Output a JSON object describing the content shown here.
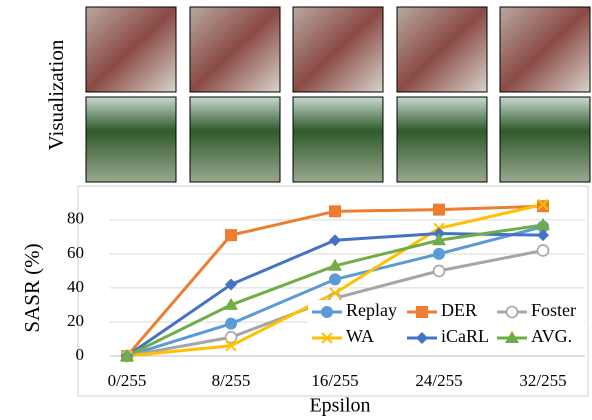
{
  "chart_data": {
    "type": "line",
    "side_label": "Visualization",
    "xlabel": "Epsilon",
    "ylabel": "SASR (%)",
    "categories": [
      "0/255",
      "8/255",
      "16/255",
      "24/255",
      "32/255"
    ],
    "ylim": [
      0,
      94
    ],
    "yticks": [
      0,
      20,
      40,
      60,
      80
    ],
    "grid": true,
    "legend": "lower right",
    "series": [
      {
        "name": "Replay",
        "color": "#5b9bd5",
        "marker": "circle",
        "values": [
          0,
          19,
          45,
          60,
          76
        ]
      },
      {
        "name": "DER",
        "color": "#ed7d31",
        "marker": "square",
        "values": [
          0,
          71,
          85,
          86,
          88
        ]
      },
      {
        "name": "Foster",
        "color": "#a5a5a5",
        "marker": "hollow-circle",
        "values": [
          0,
          11,
          34,
          50,
          62
        ]
      },
      {
        "name": "WA",
        "color": "#ffc000",
        "marker": "x",
        "values": [
          0,
          6,
          37,
          75,
          89
        ]
      },
      {
        "name": "iCaRL",
        "color": "#4472c4",
        "marker": "diamond",
        "values": [
          0,
          42,
          68,
          72,
          71
        ]
      },
      {
        "name": "AVG.",
        "color": "#70ad47",
        "marker": "triangle",
        "values": [
          0,
          30,
          53,
          68,
          77
        ]
      }
    ]
  }
}
